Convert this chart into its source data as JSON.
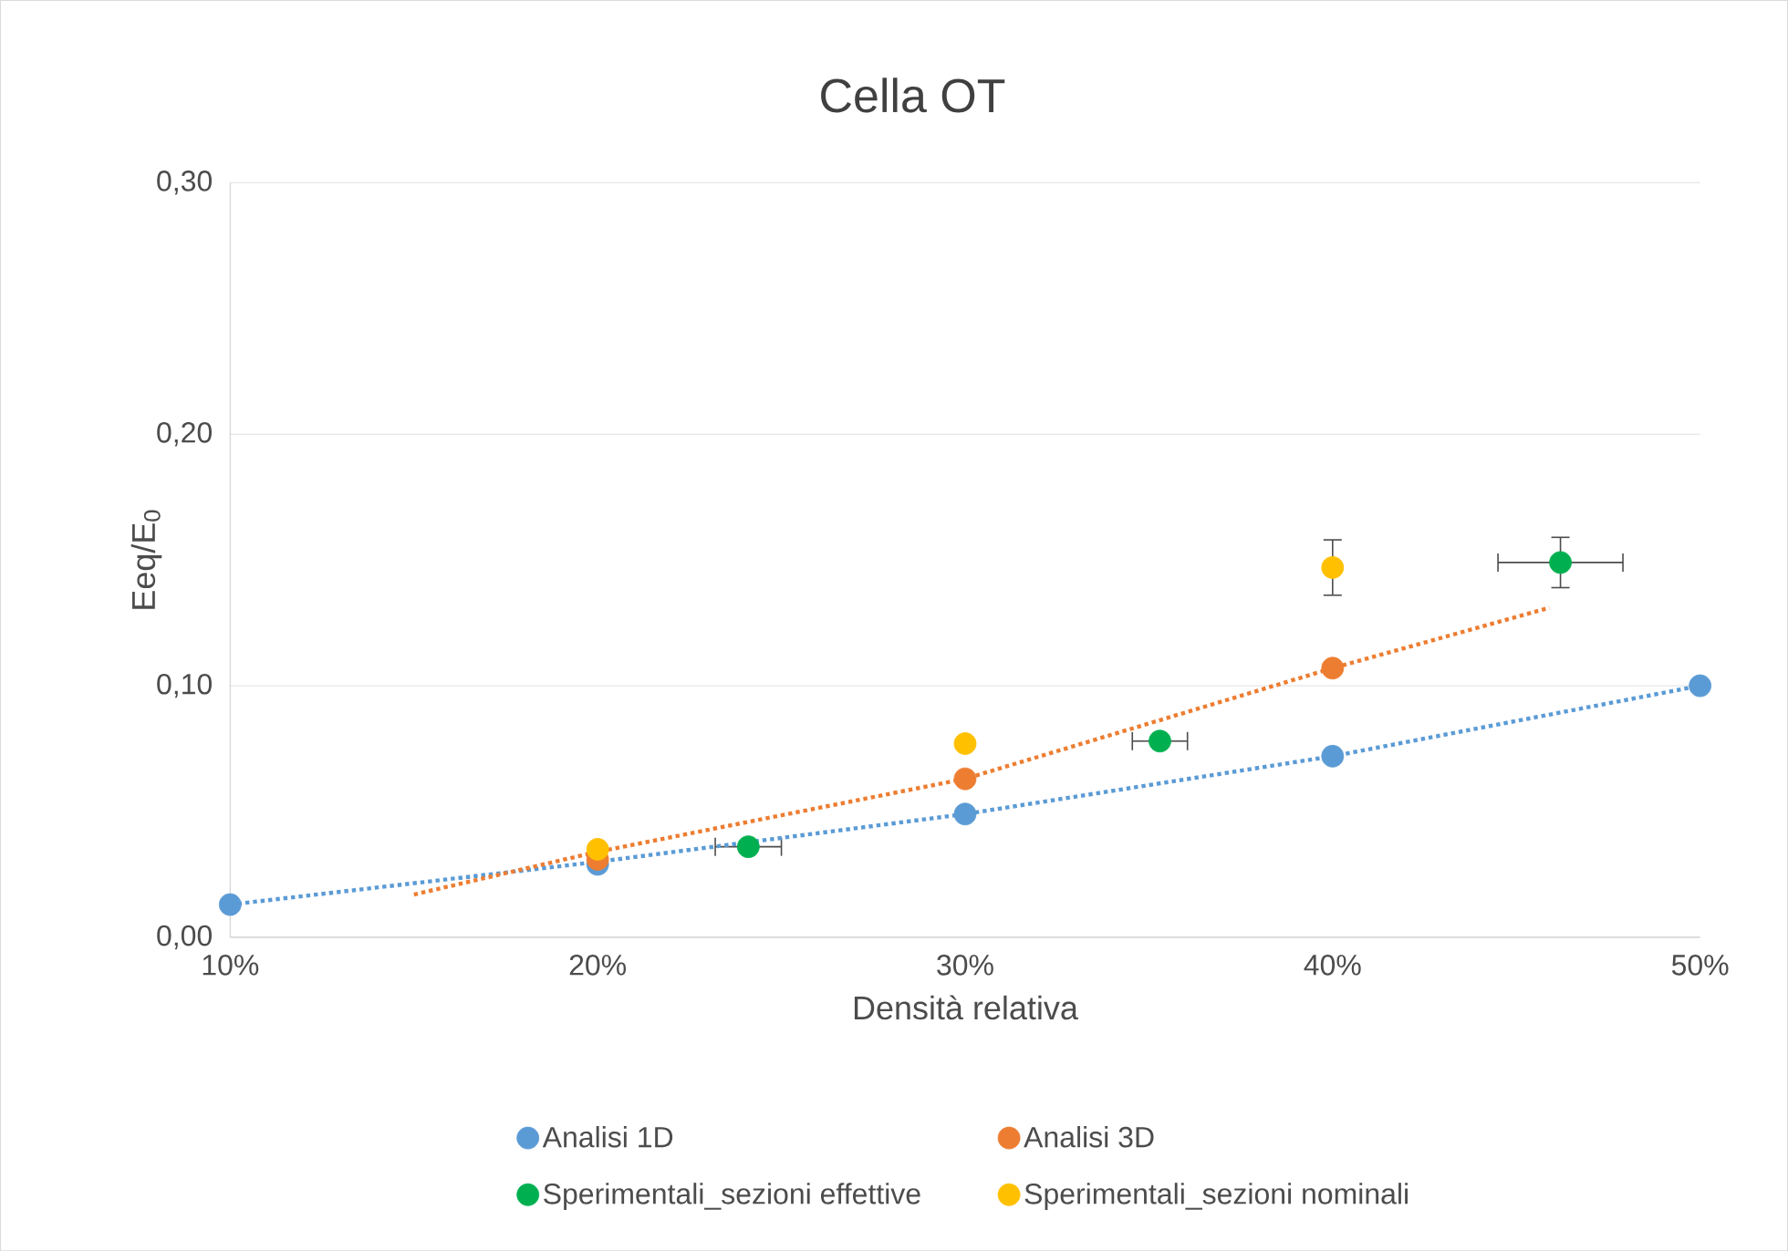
{
  "chart_data": {
    "type": "scatter",
    "title": "Cella OT",
    "xlabel": "Densità relativa",
    "ylabel": "Eeq/E$_{0}$",
    "xlim": [
      10,
      50
    ],
    "ylim": [
      0,
      0.3
    ],
    "xticks": [
      {
        "value": 10,
        "label": "10%"
      },
      {
        "value": 20,
        "label": "20%"
      },
      {
        "value": 30,
        "label": "30%"
      },
      {
        "value": 40,
        "label": "40%"
      },
      {
        "value": 50,
        "label": "50%"
      }
    ],
    "yticks": [
      {
        "value": 0,
        "label": "0,00"
      },
      {
        "value": 0.1,
        "label": "0,10"
      },
      {
        "value": 0.2,
        "label": "0,20"
      },
      {
        "value": 0.3,
        "label": "0,30"
      }
    ],
    "grid": "y",
    "legend": "bottom",
    "marker": "circle",
    "series": [
      {
        "name": "Analisi 1D",
        "color": "#5b9bd5",
        "x": [
          10,
          20,
          30,
          40,
          50
        ],
        "values": [
          0.013,
          0.029,
          0.049,
          0.072,
          0.1
        ]
      },
      {
        "name": "Analisi 3D",
        "color": "#ed7d31",
        "x": [
          20,
          30,
          40
        ],
        "values": [
          0.031,
          0.063,
          0.107
        ]
      },
      {
        "name": "Sperimentali_sezioni effettive",
        "color": "#00b050",
        "x": [
          24.1,
          35.3,
          46.2
        ],
        "values": [
          0.036,
          0.078,
          0.149
        ],
        "errors": [
          null,
          null,
          0.01
        ],
        "xerrors": [
          0.9,
          0.75,
          1.7
        ]
      },
      {
        "name": "Sperimentali_sezioni nominali",
        "color": "#ffc000",
        "x": [
          20,
          30,
          40
        ],
        "values": [
          0.035,
          0.077,
          0.147
        ],
        "errors": [
          null,
          null,
          0.011
        ]
      },
      {
        "type": "line",
        "color": "#5b9bd5",
        "line_style": "dotted",
        "marker": "none",
        "x": [
          10,
          20,
          30,
          40,
          50
        ],
        "values": [
          0.013,
          0.03,
          0.049,
          0.072,
          0.1
        ]
      },
      {
        "type": "line",
        "color": "#ed7d31",
        "line_style": "dotted",
        "marker": "none",
        "x": [
          15,
          20,
          30,
          40,
          45.9
        ],
        "values": [
          0.017,
          0.034,
          0.063,
          0.107,
          0.131
        ]
      }
    ]
  }
}
